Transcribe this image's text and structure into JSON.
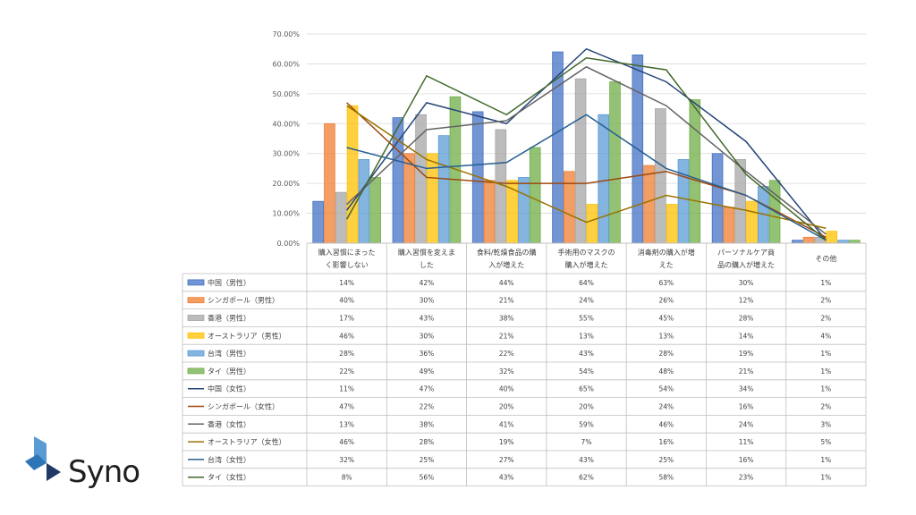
{
  "brand": {
    "name": "Syno",
    "colors": [
      "#5b9bd5",
      "#2e75b6",
      "#1f3864"
    ]
  },
  "chart_data": {
    "type": "bar",
    "ylim": [
      0,
      70
    ],
    "y_ticks": [
      "0.00%",
      "10.00%",
      "20.00%",
      "30.00%",
      "40.00%",
      "50.00%",
      "60.00%",
      "70.00%"
    ],
    "grid": true,
    "categories": [
      [
        "購入習慣にまった",
        "く影響しない"
      ],
      [
        "購入習慣を変えま",
        "した"
      ],
      [
        "食料/乾燥食品の購",
        "入が増えた"
      ],
      [
        "手術用のマスクの",
        "購入が増えた"
      ],
      [
        "消毒剤の購入が増",
        "えた"
      ],
      [
        "パーソナルケア商",
        "品の購入が増えた"
      ],
      [
        "その他"
      ]
    ],
    "series": [
      {
        "name": "中国（男性）",
        "kind": "bar",
        "color": "#4472c4",
        "values": [
          14,
          42,
          44,
          64,
          63,
          30,
          1
        ],
        "labels": [
          "14%",
          "42%",
          "44%",
          "64%",
          "63%",
          "30%",
          "1%"
        ]
      },
      {
        "name": "シンガポール（男性）",
        "kind": "bar",
        "color": "#ed7d31",
        "values": [
          40,
          30,
          21,
          24,
          26,
          12,
          2
        ],
        "labels": [
          "40%",
          "30%",
          "21%",
          "24%",
          "26%",
          "12%",
          "2%"
        ]
      },
      {
        "name": "香港（男性）",
        "kind": "bar",
        "color": "#a5a5a5",
        "values": [
          17,
          43,
          38,
          55,
          45,
          28,
          2
        ],
        "labels": [
          "17%",
          "43%",
          "38%",
          "55%",
          "45%",
          "28%",
          "2%"
        ]
      },
      {
        "name": "オーストラリア（男性）",
        "kind": "bar",
        "color": "#ffc000",
        "values": [
          46,
          30,
          21,
          13,
          13,
          14,
          4
        ],
        "labels": [
          "46%",
          "30%",
          "21%",
          "13%",
          "13%",
          "14%",
          "4%"
        ]
      },
      {
        "name": "台湾（男性）",
        "kind": "bar",
        "color": "#5b9bd5",
        "values": [
          28,
          36,
          22,
          43,
          28,
          19,
          1
        ],
        "labels": [
          "28%",
          "36%",
          "22%",
          "43%",
          "28%",
          "19%",
          "1%"
        ]
      },
      {
        "name": "タイ（男性）",
        "kind": "bar",
        "color": "#70ad47",
        "values": [
          22,
          49,
          32,
          54,
          48,
          21,
          1
        ],
        "labels": [
          "22%",
          "49%",
          "32%",
          "54%",
          "48%",
          "21%",
          "1%"
        ]
      },
      {
        "name": "中国（女性）",
        "kind": "line",
        "color": "#264478",
        "values": [
          11,
          47,
          40,
          65,
          54,
          34,
          1
        ],
        "labels": [
          "11%",
          "47%",
          "40%",
          "65%",
          "54%",
          "34%",
          "1%"
        ]
      },
      {
        "name": "シンガポール（女性）",
        "kind": "line",
        "color": "#9e480e",
        "values": [
          47,
          22,
          20,
          20,
          24,
          16,
          2
        ],
        "labels": [
          "47%",
          "22%",
          "20%",
          "20%",
          "24%",
          "16%",
          "2%"
        ]
      },
      {
        "name": "香港（女性）",
        "kind": "line",
        "color": "#636363",
        "values": [
          13,
          38,
          41,
          59,
          46,
          24,
          3
        ],
        "labels": [
          "13%",
          "38%",
          "41%",
          "59%",
          "46%",
          "24%",
          "3%"
        ]
      },
      {
        "name": "オーストラリア（女性）",
        "kind": "line",
        "color": "#997300",
        "values": [
          46,
          28,
          19,
          7,
          16,
          11,
          5
        ],
        "labels": [
          "46%",
          "28%",
          "19%",
          "7%",
          "16%",
          "11%",
          "5%"
        ]
      },
      {
        "name": "台湾（女性）",
        "kind": "line",
        "color": "#255e91",
        "values": [
          32,
          25,
          27,
          43,
          25,
          16,
          1
        ],
        "labels": [
          "32%",
          "25%",
          "27%",
          "43%",
          "25%",
          "16%",
          "1%"
        ]
      },
      {
        "name": "タイ（女性）",
        "kind": "line",
        "color": "#43682b",
        "values": [
          8,
          56,
          43,
          62,
          58,
          23,
          1
        ],
        "labels": [
          "8%",
          "56%",
          "43%",
          "62%",
          "58%",
          "23%",
          "1%"
        ]
      }
    ]
  }
}
